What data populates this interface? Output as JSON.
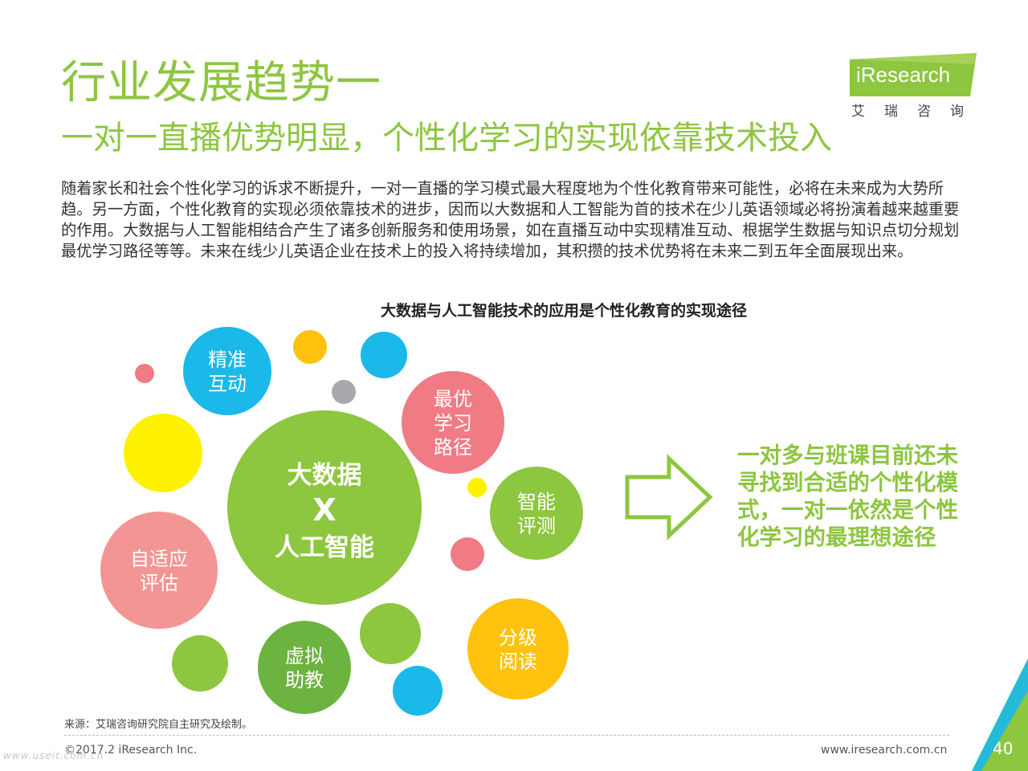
{
  "header": {
    "title": "行业发展趋势一",
    "subtitle": "一对一直播优势明显，个性化学习的实现依靠技术投入"
  },
  "logo": {
    "brand_prefix": "i",
    "brand_rest": "Research",
    "chinese": "艾瑞咨询",
    "accent_color": "#8dc63f"
  },
  "body_text": "随着家长和社会个性化学习的诉求不断提升，一对一直播的学习模式最大程度地为个性化教育带来可能性，必将在未来成为大势所趋。另一方面，个性化教育的实现必须依靠技术的进步，因而以大数据和人工智能为首的技术在少儿英语领域必将扮演着越来越重要的作用。大数据与人工智能相结合产生了诸多创新服务和使用场景，如在直播互动中实现精准互动、根据学生数据与知识点切分规划最优学习路径等等。未来在线少儿英语企业在技术上的投入将持续增加，其积攒的技术优势将在未来二到五年全面展现出来。",
  "diagram": {
    "title": "大数据与人工智能技术的应用是个性化教育的实现途径",
    "center": {
      "line1": "大数据",
      "line2": "X",
      "line3": "人工智能",
      "color": "#8dc63f"
    },
    "bubbles": [
      {
        "id": "jingzhun",
        "line1": "精准",
        "line2": "互动",
        "color": "#1bb8ea"
      },
      {
        "id": "zuiyou",
        "line1": "最优",
        "line2": "学习",
        "line3": "路径",
        "color": "#f07b84"
      },
      {
        "id": "zhineng",
        "line1": "智能",
        "line2": "评测",
        "color": "#8dc63f"
      },
      {
        "id": "zishiying",
        "line1": "自适应",
        "line2": "评估",
        "color": "#f39595"
      },
      {
        "id": "xuni",
        "line1": "虚拟",
        "line2": "助教",
        "color": "#6db33f"
      },
      {
        "id": "fenji",
        "line1": "分级",
        "line2": "阅读",
        "color": "#ffc20e"
      }
    ],
    "decor_colors": {
      "yellow": "#fff200",
      "gold": "#ffc20e",
      "blue": "#1bb8ea",
      "gray": "#a7a9ac",
      "pink": "#f07b84",
      "green": "#8dc63f"
    },
    "conclusion": "一对多与班课目前还未寻找到合适的个性化模式，一对一依然是个性化学习的最理想途径"
  },
  "footer": {
    "source": "来源：艾瑞咨询研究院自主研究及绘制。",
    "copyright": "©2017.2 iResearch Inc.",
    "website": "www.iresearch.com.cn",
    "page_number": "40",
    "watermark": "www.useit.com.cn"
  }
}
